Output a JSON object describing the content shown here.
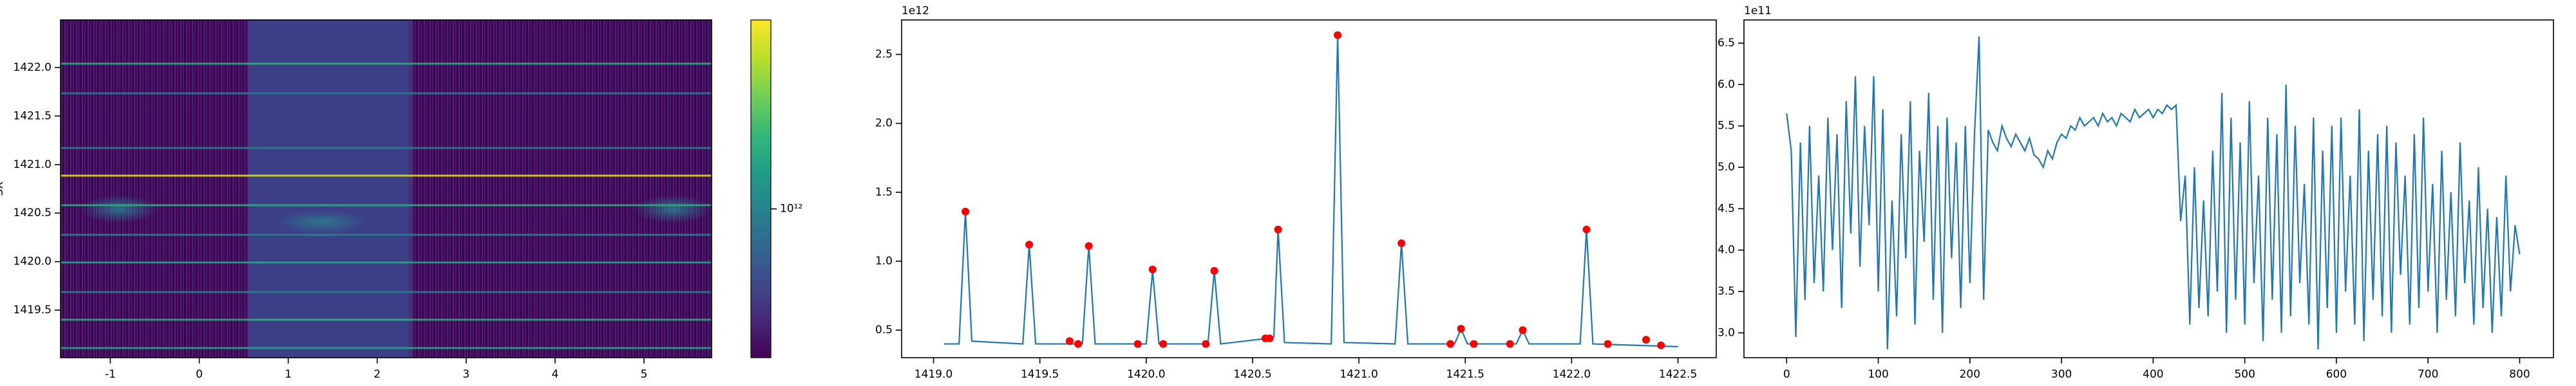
{
  "chart_data": [
    {
      "type": "heatmap",
      "y_label": "SX",
      "xlim": [
        -1.56,
        5.76
      ],
      "xticks": [
        -1,
        0,
        1,
        2,
        3,
        4,
        5
      ],
      "ylim": [
        1419.01,
        1422.49
      ],
      "yticks": [
        1419.5,
        {
          "value": 1420,
          "label": "1420.0"
        },
        1420.5,
        {
          "value": 1421,
          "label": "1421.0"
        },
        1421.5,
        {
          "value": 1422,
          "label": "1422.0"
        }
      ],
      "colorbar": {
        "scale": "log",
        "clim": [
          400000000000,
          3200000000000
        ],
        "ticks": [
          {
            "value": 1000000000000,
            "label": "10¹²"
          }
        ]
      }
    },
    {
      "type": "line",
      "offset_label": "1e12",
      "xlim": [
        1418.85,
        1422.68
      ],
      "xticks": [
        {
          "value": 1419,
          "label": "1419.0"
        },
        1419.5,
        {
          "value": 1420,
          "label": "1420.0"
        },
        1420.5,
        {
          "value": 1421,
          "label": "1421.0"
        },
        1421.5,
        {
          "value": 1422,
          "label": "1422.0"
        },
        1422.5
      ],
      "ylim": [
        0.3,
        2.75
      ],
      "yticks": [
        0.5,
        {
          "value": 1,
          "label": "1.0"
        },
        1.5,
        {
          "value": 2,
          "label": "2.0"
        },
        2.5
      ],
      "series": [
        {
          "style": "line",
          "color": "#1f77b4",
          "x": [
            1419.05,
            1419.12,
            1419.15,
            1419.18,
            1419.42,
            1419.45,
            1419.48,
            1419.7,
            1419.73,
            1419.76,
            1420.0,
            1420.03,
            1420.06,
            1420.29,
            1420.32,
            1420.35,
            1420.57,
            1420.6,
            1420.62,
            1420.65,
            1420.87,
            1420.9,
            1420.93,
            1421.17,
            1421.2,
            1421.23,
            1421.45,
            1421.48,
            1421.51,
            1421.74,
            1421.77,
            1421.8,
            1422.04,
            1422.07,
            1422.1,
            1422.5
          ],
          "values": [
            0.4,
            0.4,
            1.36,
            0.42,
            0.4,
            1.12,
            0.4,
            0.4,
            1.11,
            0.4,
            0.4,
            0.93,
            0.4,
            0.4,
            0.93,
            0.4,
            0.44,
            0.45,
            1.23,
            0.41,
            0.4,
            2.64,
            0.41,
            0.4,
            1.13,
            0.4,
            0.4,
            0.51,
            0.4,
            0.4,
            0.5,
            0.4,
            0.4,
            1.23,
            0.4,
            0.38
          ]
        },
        {
          "style": "points",
          "color": "#ff0000",
          "x": [
            1419.15,
            1419.45,
            1419.64,
            1419.68,
            1419.73,
            1419.96,
            1420.03,
            1420.08,
            1420.28,
            1420.32,
            1420.56,
            1420.58,
            1420.62,
            1420.9,
            1421.2,
            1421.43,
            1421.48,
            1421.54,
            1421.71,
            1421.77,
            1422.07,
            1422.17,
            1422.35,
            1422.42
          ],
          "values": [
            1.36,
            1.12,
            0.42,
            0.4,
            1.11,
            0.4,
            0.94,
            0.4,
            0.4,
            0.93,
            0.44,
            0.44,
            1.23,
            2.64,
            1.13,
            0.4,
            0.51,
            0.4,
            0.4,
            0.5,
            1.23,
            0.4,
            0.43,
            0.39
          ]
        }
      ]
    },
    {
      "type": "line",
      "offset_label": "1e11",
      "xlim": [
        -46.6,
        836.9
      ],
      "xticks": [
        0,
        100,
        200,
        300,
        400,
        500,
        600,
        700,
        800
      ],
      "ylim": [
        2.7,
        6.78
      ],
      "yticks": [
        {
          "value": 3,
          "label": "3.0"
        },
        3.5,
        {
          "value": 4,
          "label": "4.0"
        },
        4.5,
        {
          "value": 5,
          "label": "5.0"
        },
        5.5,
        {
          "value": 6,
          "label": "6.0"
        },
        6.5
      ],
      "series": [
        {
          "style": "line",
          "color": "#1f77b4",
          "x": [
            0,
            5,
            10,
            15,
            20,
            25,
            30,
            35,
            40,
            45,
            50,
            55,
            60,
            65,
            70,
            75,
            80,
            85,
            90,
            95,
            100,
            105,
            110,
            115,
            120,
            125,
            130,
            135,
            140,
            145,
            150,
            155,
            160,
            165,
            170,
            175,
            180,
            185,
            190,
            195,
            200,
            205,
            210,
            215,
            220,
            225,
            230,
            235,
            240,
            245,
            250,
            255,
            260,
            265,
            270,
            275,
            280,
            285,
            290,
            295,
            300,
            305,
            310,
            315,
            320,
            325,
            330,
            335,
            340,
            345,
            350,
            355,
            360,
            365,
            370,
            375,
            380,
            385,
            390,
            395,
            400,
            405,
            410,
            415,
            420,
            425,
            430,
            435,
            440,
            445,
            450,
            455,
            460,
            465,
            470,
            475,
            480,
            485,
            490,
            495,
            500,
            505,
            510,
            515,
            520,
            525,
            530,
            535,
            540,
            545,
            550,
            555,
            560,
            565,
            570,
            575,
            580,
            585,
            590,
            595,
            600,
            605,
            610,
            615,
            620,
            625,
            630,
            635,
            640,
            645,
            650,
            655,
            660,
            665,
            670,
            675,
            680,
            685,
            690,
            695,
            700,
            705,
            710,
            715,
            720,
            725,
            730,
            735,
            740,
            745,
            750,
            755,
            760,
            765,
            770,
            775,
            780,
            785,
            790,
            795,
            800
          ],
          "values": [
            5.65,
            5.2,
            2.95,
            5.3,
            3.4,
            5.5,
            3.6,
            4.9,
            3.5,
            5.6,
            4.0,
            5.4,
            3.3,
            5.8,
            4.2,
            6.1,
            3.8,
            5.5,
            4.3,
            6.1,
            3.5,
            5.7,
            2.8,
            4.6,
            3.2,
            5.4,
            3.9,
            5.8,
            3.1,
            5.2,
            4.1,
            5.9,
            3.4,
            5.5,
            3.0,
            5.6,
            3.9,
            5.3,
            3.3,
            5.5,
            3.6,
            5.4,
            6.58,
            3.4,
            5.45,
            5.3,
            5.2,
            5.5,
            5.35,
            5.25,
            5.4,
            5.3,
            5.2,
            5.35,
            5.15,
            5.1,
            5.0,
            5.2,
            5.1,
            5.3,
            5.4,
            5.35,
            5.5,
            5.45,
            5.6,
            5.5,
            5.55,
            5.6,
            5.5,
            5.65,
            5.55,
            5.6,
            5.5,
            5.65,
            5.6,
            5.55,
            5.7,
            5.6,
            5.65,
            5.7,
            5.6,
            5.7,
            5.65,
            5.75,
            5.7,
            5.75,
            4.35,
            4.9,
            3.1,
            5.0,
            3.3,
            4.6,
            3.2,
            5.2,
            3.5,
            5.9,
            3.0,
            5.6,
            3.4,
            5.3,
            3.1,
            5.8,
            3.6,
            4.9,
            2.9,
            5.6,
            3.4,
            5.4,
            3.0,
            6.0,
            3.2,
            5.5,
            3.6,
            4.8,
            3.1,
            5.6,
            2.8,
            5.2,
            3.3,
            5.5,
            3.0,
            5.6,
            3.5,
            4.9,
            3.1,
            5.7,
            2.9,
            5.2,
            3.4,
            5.4,
            3.2,
            5.5,
            3.0,
            5.3,
            3.7,
            4.9,
            3.1,
            5.4,
            3.3,
            5.6,
            3.5,
            4.8,
            3.0,
            5.2,
            3.4,
            4.7,
            3.2,
            5.3,
            3.6,
            4.6,
            3.1,
            5.0,
            3.3,
            4.5,
            3.0,
            4.4,
            3.2,
            4.9,
            3.5,
            4.3,
            3.95
          ]
        }
      ]
    }
  ]
}
